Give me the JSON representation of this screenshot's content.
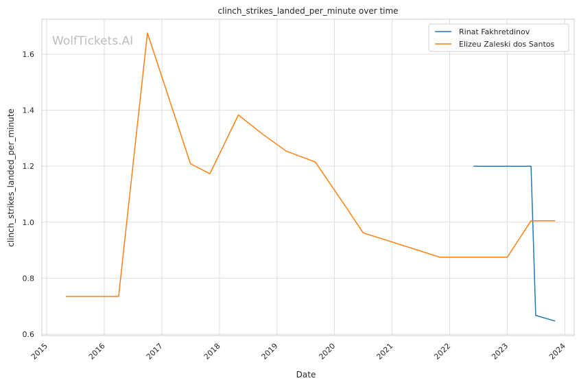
{
  "chart_data": {
    "type": "line",
    "title": "clinch_strikes_landed_per_minute over time",
    "xlabel": "Date",
    "ylabel": "clinch_strikes_landed_per_minute",
    "watermark": "WolfTickets.AI",
    "x_axis": "date",
    "xlim": [
      "2014-12-01",
      "2024-03-01"
    ],
    "ylim": [
      0.595,
      1.725
    ],
    "x_ticks": [
      "2015",
      "2016",
      "2017",
      "2018",
      "2019",
      "2020",
      "2021",
      "2022",
      "2023",
      "2024"
    ],
    "y_ticks": [
      "0.6",
      "0.8",
      "1.0",
      "1.2",
      "1.4",
      "1.6"
    ],
    "grid": true,
    "legend_position": "top-right",
    "series": [
      {
        "name": "Rinat Fakhretdinov",
        "color": "#1f77b4",
        "points": [
          {
            "x": "2022-06-01",
            "y": 1.2
          },
          {
            "x": "2023-06-01",
            "y": 1.2
          },
          {
            "x": "2023-07-01",
            "y": 0.667
          },
          {
            "x": "2023-11-01",
            "y": 0.647
          }
        ]
      },
      {
        "name": "Elizeu Zaleski dos Santos",
        "color": "#ff7f0e",
        "points": [
          {
            "x": "2015-05-01",
            "y": 0.735
          },
          {
            "x": "2016-04-01",
            "y": 0.735
          },
          {
            "x": "2016-10-01",
            "y": 1.676
          },
          {
            "x": "2017-07-01",
            "y": 1.209
          },
          {
            "x": "2017-11-01",
            "y": 1.173
          },
          {
            "x": "2018-05-01",
            "y": 1.383
          },
          {
            "x": "2018-10-01",
            "y": 1.315
          },
          {
            "x": "2019-03-01",
            "y": 1.254
          },
          {
            "x": "2019-09-01",
            "y": 1.215
          },
          {
            "x": "2020-03-01",
            "y": 1.065
          },
          {
            "x": "2020-07-01",
            "y": 0.962
          },
          {
            "x": "2021-11-01",
            "y": 0.875
          },
          {
            "x": "2023-01-01",
            "y": 0.875
          },
          {
            "x": "2023-06-01",
            "y": 1.005
          },
          {
            "x": "2023-11-01",
            "y": 1.005
          }
        ]
      }
    ]
  }
}
